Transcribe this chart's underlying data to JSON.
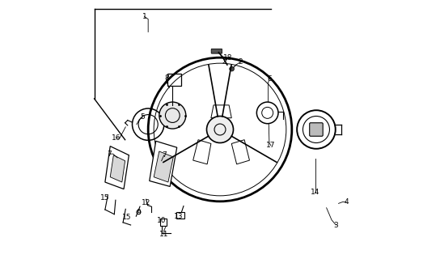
{
  "background_color": "#ffffff",
  "line_color": "#000000",
  "fig_width": 5.44,
  "fig_height": 3.2,
  "dpi": 100
}
